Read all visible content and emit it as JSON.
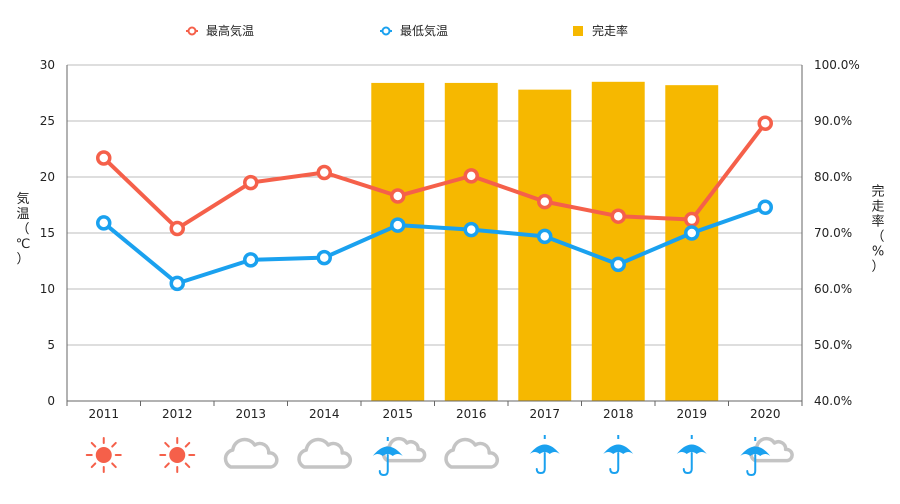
{
  "chart_data": {
    "type": "bar+line",
    "categories": [
      "2011",
      "2012",
      "2013",
      "2014",
      "2015",
      "2016",
      "2017",
      "2018",
      "2019",
      "2020"
    ],
    "series": [
      {
        "name": "最高気温",
        "type": "line",
        "axis": "left",
        "color": "#f5604a",
        "values": [
          21.7,
          15.4,
          19.5,
          20.4,
          18.3,
          20.1,
          17.8,
          16.5,
          16.2,
          24.8
        ]
      },
      {
        "name": "最低気温",
        "type": "line",
        "axis": "left",
        "color": "#1aa1ef",
        "values": [
          15.9,
          10.5,
          12.6,
          12.8,
          15.7,
          15.3,
          14.7,
          12.2,
          15.0,
          17.3
        ]
      },
      {
        "name": "完走率",
        "type": "bar",
        "axis": "right",
        "color": "#f6b800",
        "values": [
          null,
          null,
          null,
          null,
          96.8,
          96.8,
          95.6,
          97.0,
          96.4,
          null
        ]
      }
    ],
    "y_left": {
      "label": "気温（℃）",
      "min": 0,
      "max": 30,
      "ticks": [
        "0",
        "5",
        "10",
        "15",
        "20",
        "25",
        "30"
      ]
    },
    "y_right": {
      "label": "完走率（%）",
      "min": 40,
      "max": 100,
      "ticks": [
        "40.0%",
        "50.0%",
        "60.0%",
        "70.0%",
        "80.0%",
        "90.0%",
        "100.0%"
      ]
    },
    "grid": true,
    "legend_position": "top",
    "weather_icons": [
      "sun",
      "sun",
      "cloud",
      "cloud",
      "umbrella-cloud",
      "cloud",
      "umbrella",
      "umbrella",
      "umbrella",
      "umbrella-cloud"
    ]
  }
}
